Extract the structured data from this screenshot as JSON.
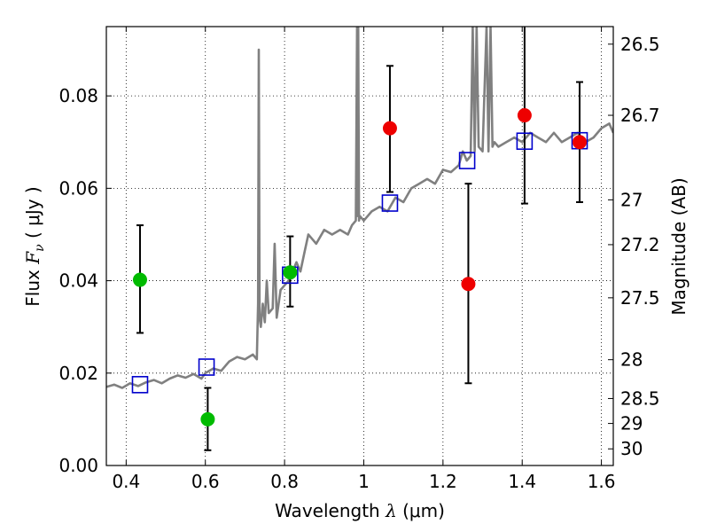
{
  "chart_data": {
    "type": "scatter",
    "xlabel": "Wavelength  λ (μm)",
    "ylabel": "Flux  F_ν  ( μJy )",
    "ylabel_right": "Magnitude (AB)",
    "xlim": [
      0.35,
      1.63
    ],
    "ylim": [
      0.0,
      0.095
    ],
    "grid": true,
    "x_ticks": [
      0.4,
      0.6,
      0.8,
      1.0,
      1.2,
      1.4,
      1.6
    ],
    "x_tick_labels": [
      "0.4",
      "0.6",
      "0.8",
      "1",
      "1.2",
      "1.4",
      "1.6"
    ],
    "y_ticks": [
      0.0,
      0.02,
      0.04,
      0.06,
      0.08
    ],
    "y_tick_labels": [
      "0.00",
      "0.02",
      "0.04",
      "0.06",
      "0.08"
    ],
    "mag_ticks": [
      {
        "label": "26.5",
        "flux": 0.0912
      },
      {
        "label": "26.7",
        "flux": 0.0758
      },
      {
        "label": "27",
        "flux": 0.0575
      },
      {
        "label": "27.2",
        "flux": 0.0478
      },
      {
        "label": "27.5",
        "flux": 0.0363
      },
      {
        "label": "28",
        "flux": 0.0229
      },
      {
        "label": "28.5",
        "flux": 0.0145
      },
      {
        "label": "29",
        "flux": 0.0091
      },
      {
        "label": "30",
        "flux": 0.0036
      }
    ],
    "colors": {
      "spectrum": "#808080",
      "model": "#0000cc",
      "green": "#00bb00",
      "red": "#ee0000",
      "errorbar": "#000000",
      "grid": "#000000"
    },
    "series": [
      {
        "name": "model-spectrum",
        "style": "line",
        "x": [
          0.35,
          0.37,
          0.39,
          0.41,
          0.43,
          0.45,
          0.47,
          0.49,
          0.51,
          0.53,
          0.55,
          0.57,
          0.59,
          0.6,
          0.62,
          0.64,
          0.66,
          0.68,
          0.7,
          0.72,
          0.73,
          0.733,
          0.735,
          0.737,
          0.74,
          0.745,
          0.75,
          0.755,
          0.76,
          0.77,
          0.775,
          0.78,
          0.79,
          0.8,
          0.81,
          0.82,
          0.83,
          0.84,
          0.85,
          0.86,
          0.87,
          0.88,
          0.9,
          0.92,
          0.94,
          0.96,
          0.97,
          0.98,
          0.983,
          0.985,
          0.986,
          0.988,
          0.99,
          1.0,
          1.02,
          1.04,
          1.06,
          1.08,
          1.1,
          1.12,
          1.14,
          1.16,
          1.18,
          1.2,
          1.22,
          1.24,
          1.25,
          1.26,
          1.27,
          1.275,
          1.28,
          1.285,
          1.29,
          1.3,
          1.31,
          1.315,
          1.32,
          1.325,
          1.33,
          1.34,
          1.36,
          1.38,
          1.4,
          1.42,
          1.44,
          1.46,
          1.48,
          1.5,
          1.52,
          1.54,
          1.56,
          1.58,
          1.6,
          1.62,
          1.63
        ],
        "y": [
          0.017,
          0.0175,
          0.0168,
          0.0178,
          0.0172,
          0.018,
          0.0185,
          0.0178,
          0.0188,
          0.0195,
          0.019,
          0.0198,
          0.0188,
          0.02,
          0.021,
          0.0205,
          0.0225,
          0.0235,
          0.023,
          0.024,
          0.023,
          0.035,
          0.09,
          0.032,
          0.03,
          0.035,
          0.031,
          0.04,
          0.033,
          0.034,
          0.048,
          0.032,
          0.038,
          0.039,
          0.04,
          0.042,
          0.044,
          0.042,
          0.046,
          0.05,
          0.049,
          0.048,
          0.051,
          0.05,
          0.051,
          0.05,
          0.052,
          0.053,
          0.095,
          0.054,
          0.095,
          0.053,
          0.054,
          0.053,
          0.055,
          0.056,
          0.055,
          0.058,
          0.057,
          0.06,
          0.061,
          0.062,
          0.061,
          0.064,
          0.0635,
          0.065,
          0.068,
          0.066,
          0.067,
          0.095,
          0.068,
          0.095,
          0.069,
          0.068,
          0.095,
          0.068,
          0.095,
          0.069,
          0.07,
          0.069,
          0.07,
          0.071,
          0.07,
          0.072,
          0.071,
          0.07,
          0.072,
          0.07,
          0.071,
          0.072,
          0.07,
          0.071,
          0.073,
          0.074,
          0.072
        ]
      },
      {
        "name": "model-photometry",
        "style": "open-square",
        "x": [
          0.435,
          0.603,
          0.814,
          1.066,
          1.261,
          1.406,
          1.545
        ],
        "y": [
          0.0175,
          0.0213,
          0.0412,
          0.0568,
          0.066,
          0.0702,
          0.0703
        ]
      },
      {
        "name": "observed-green",
        "style": "filled-circle",
        "x": [
          0.435,
          0.606,
          0.814
        ],
        "y": [
          0.0402,
          0.01,
          0.0418
        ],
        "yerr_low": [
          0.0287,
          0.0033,
          0.0344
        ],
        "yerr_high": [
          0.052,
          0.0168,
          0.0496
        ]
      },
      {
        "name": "observed-red",
        "style": "filled-circle",
        "x": [
          1.066,
          1.264,
          1.406,
          1.545
        ],
        "y": [
          0.073,
          0.0393,
          0.0758,
          0.07
        ],
        "yerr_low": [
          0.0592,
          0.0178,
          0.0567,
          0.057
        ],
        "yerr_high": [
          0.0865,
          0.061,
          0.096,
          0.083
        ]
      }
    ]
  }
}
